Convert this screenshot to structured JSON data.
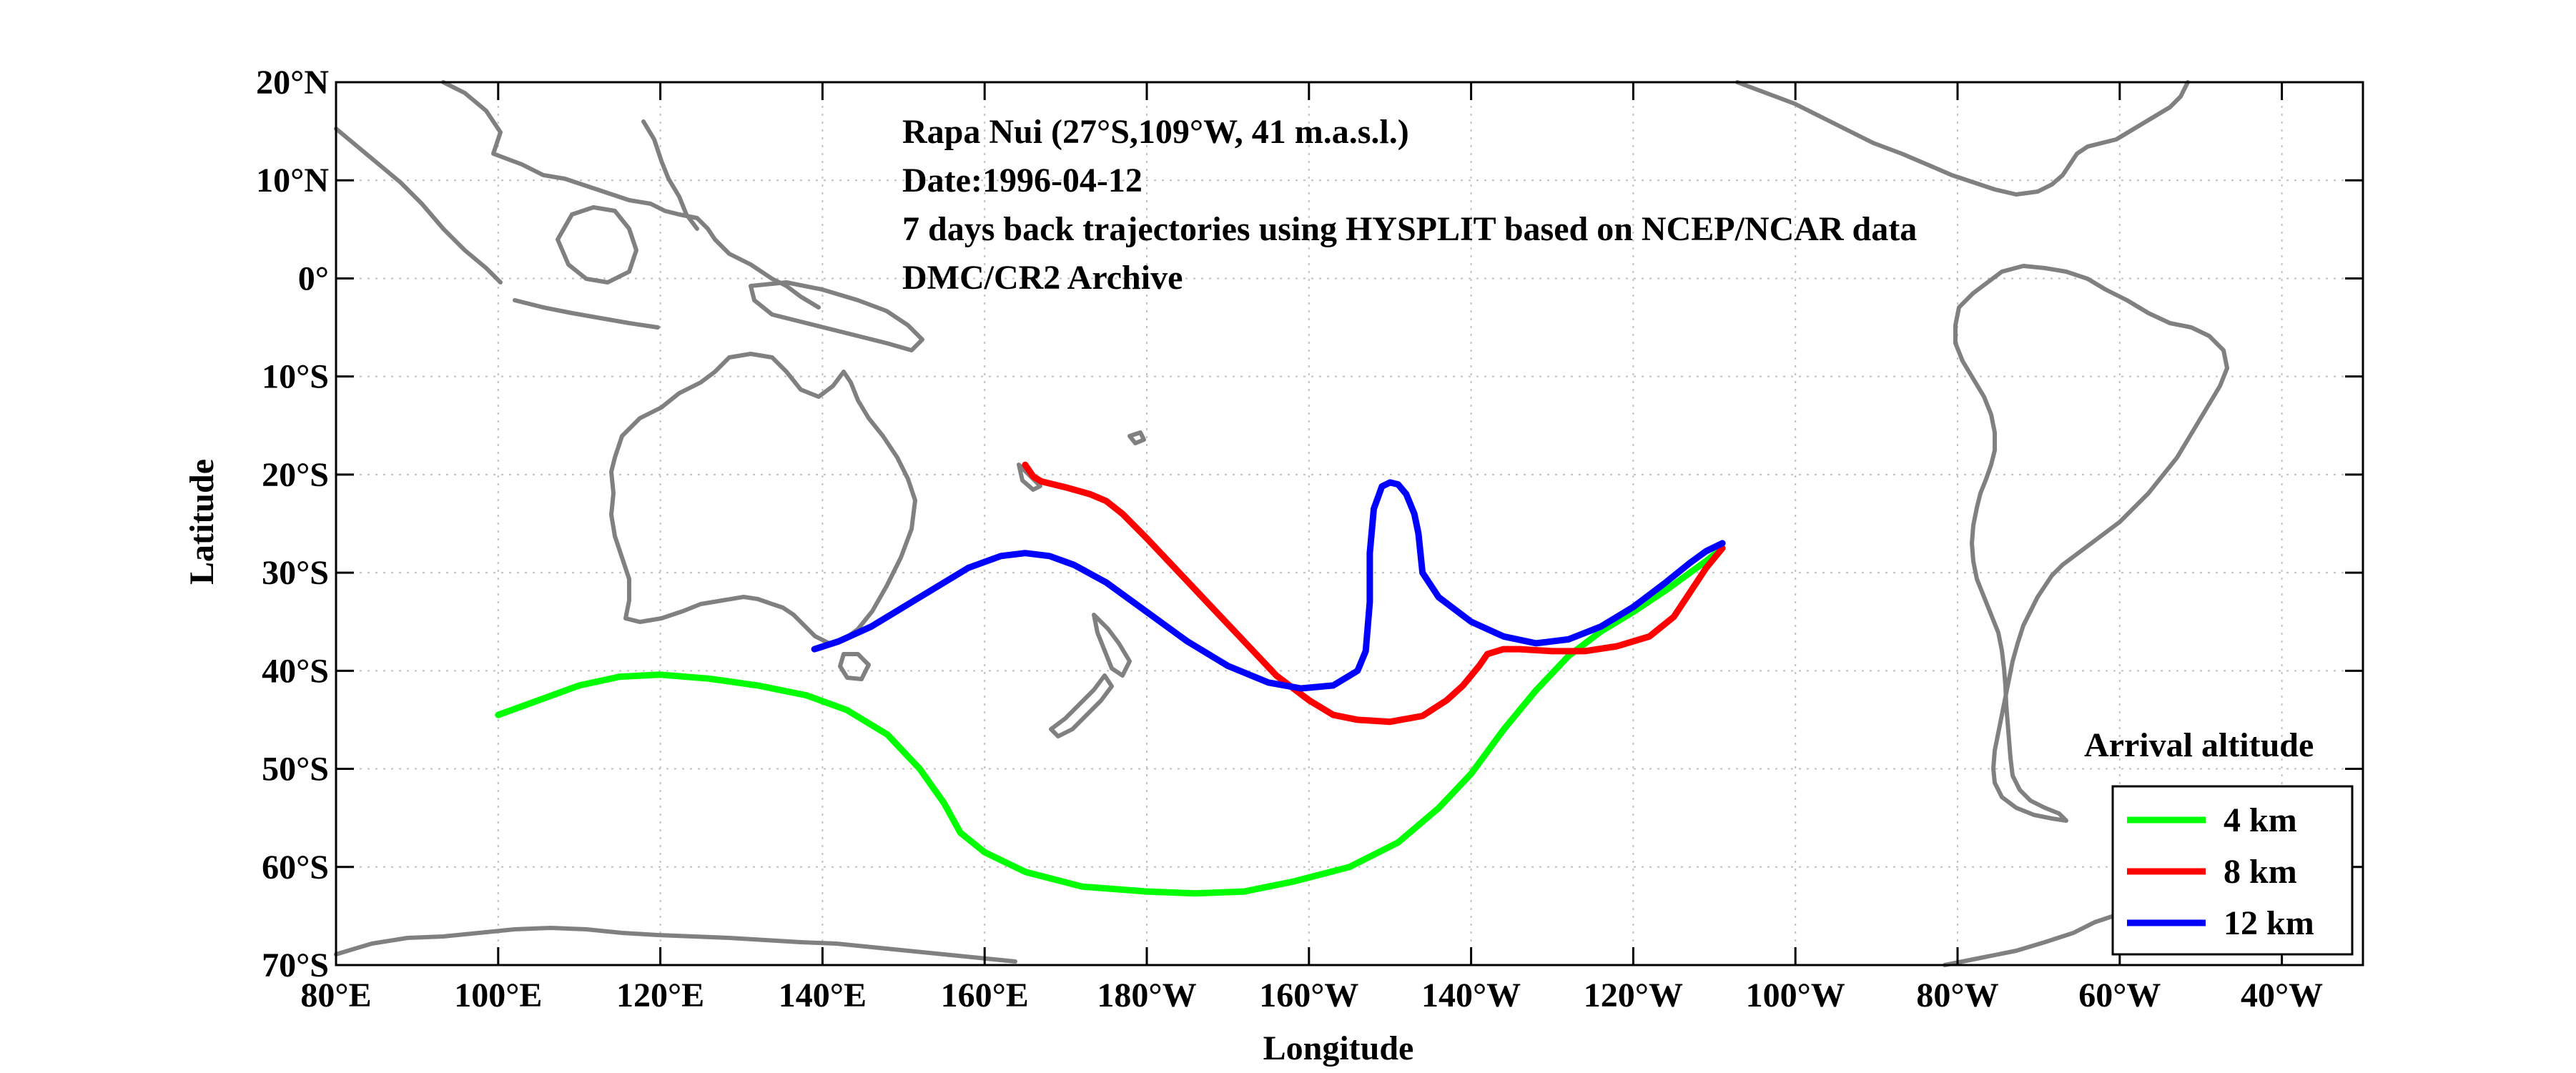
{
  "chart_data": {
    "type": "map",
    "title_lines": [
      "Rapa Nui (27°S,109°W, 41 m.a.s.l.)",
      "Date:1996-04-12",
      "7 days back trajectories using HYSPLIT based on NCEP/NCAR data",
      "DMC/CR2 Archive"
    ],
    "xlabel": "Longitude",
    "ylabel": "Latitude",
    "xlim": [
      80,
      330
    ],
    "ylim": [
      -70,
      20
    ],
    "x_ticks": [
      80,
      100,
      120,
      140,
      160,
      180,
      200,
      220,
      240,
      260,
      280,
      300,
      320
    ],
    "x_tick_labels": [
      "80°E",
      "100°E",
      "120°E",
      "140°E",
      "160°E",
      "180°W",
      "160°W",
      "140°W",
      "120°W",
      "100°W",
      "80°W",
      "60°W",
      "40°W"
    ],
    "y_ticks": [
      20,
      10,
      0,
      -10,
      -20,
      -30,
      -40,
      -50,
      -60,
      -70
    ],
    "y_tick_labels": [
      "20°N",
      "10°N",
      "0°",
      "10°S",
      "20°S",
      "30°S",
      "40°S",
      "50°S",
      "60°S",
      "70°S"
    ],
    "grid": true,
    "legend_title": "Arrival altitude",
    "legend_position": "bottom-right",
    "coastline_color": "#808080",
    "series": [
      {
        "name": "4 km",
        "color": "#00ff00",
        "lon": [
          100,
          104,
          110,
          115,
          120,
          126,
          132,
          138,
          143,
          148,
          152,
          155,
          157,
          160,
          165,
          172,
          180,
          186,
          192,
          198,
          205,
          211,
          216,
          220,
          224,
          228,
          232,
          236,
          240,
          244,
          247,
          249,
          251
        ],
        "lat": [
          -44.5,
          -43.3,
          -41.5,
          -40.6,
          -40.4,
          -40.8,
          -41.5,
          -42.5,
          -44,
          -46.5,
          -50,
          -53.5,
          -56.5,
          -58.5,
          -60.5,
          -62,
          -62.5,
          -62.7,
          -62.5,
          -61.5,
          -60,
          -57.5,
          -54,
          -50.5,
          -46,
          -42,
          -38.5,
          -36,
          -34,
          -31.8,
          -30,
          -28.8,
          -27.5
        ]
      },
      {
        "name": "8 km",
        "color": "#ff0000",
        "lon": [
          165,
          166,
          167,
          170,
          173,
          175,
          177,
          180,
          184,
          188,
          192,
          196,
          200,
          203,
          206,
          210,
          214,
          217,
          219,
          221,
          222,
          224,
          226,
          230,
          234,
          238,
          242,
          245,
          247,
          249,
          251
        ],
        "lat": [
          -19,
          -20.2,
          -20.7,
          -21.3,
          -22,
          -22.7,
          -24,
          -26.5,
          -30,
          -33.5,
          -37,
          -40.5,
          -43,
          -44.5,
          -45,
          -45.2,
          -44.6,
          -43,
          -41.5,
          -39.5,
          -38.3,
          -37.8,
          -37.8,
          -38,
          -38,
          -37.5,
          -36.5,
          -34.5,
          -32,
          -29.5,
          -27.5
        ]
      },
      {
        "name": "12 km",
        "color": "#0000ff",
        "lon": [
          139,
          142,
          146,
          150,
          154,
          158,
          162,
          165,
          168,
          171,
          175,
          180,
          185,
          190,
          195,
          199,
          203,
          206,
          207,
          207.5,
          207.5,
          208,
          209,
          210,
          211,
          212,
          213,
          213.5,
          214,
          216,
          220,
          224,
          228,
          232,
          236,
          240,
          244,
          247,
          249,
          251
        ],
        "lat": [
          -37.8,
          -37,
          -35.5,
          -33.5,
          -31.5,
          -29.5,
          -28.3,
          -28,
          -28.3,
          -29.2,
          -31,
          -34,
          -37,
          -39.5,
          -41.2,
          -41.8,
          -41.5,
          -40,
          -38,
          -33,
          -28,
          -23.5,
          -21.2,
          -20.8,
          -21,
          -22,
          -24,
          -26,
          -30,
          -32.5,
          -35,
          -36.5,
          -37.2,
          -36.8,
          -35.5,
          -33.5,
          -31,
          -29,
          -27.8,
          -27
        ]
      }
    ]
  }
}
